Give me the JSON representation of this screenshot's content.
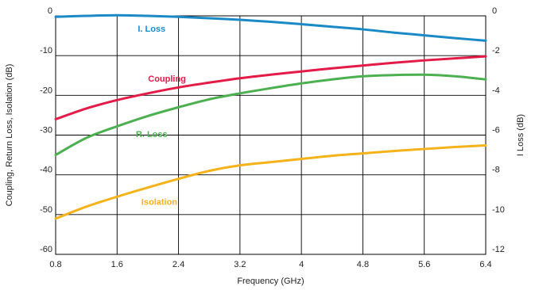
{
  "chart_data": {
    "type": "line",
    "xlabel": "Frequency (GHz)",
    "ylabel": "Coupling, Return Loss, Isolation (dB)",
    "y2label": "I Loss (dB)",
    "xlim": [
      0.8,
      6.4
    ],
    "ylim": [
      -60,
      0
    ],
    "y2lim": [
      -12,
      0
    ],
    "grid": true,
    "x_ticks": [
      "0.8",
      "1.6",
      "2.4",
      "3.2",
      "4",
      "4.8",
      "5.6",
      "6.4"
    ],
    "y_ticks": [
      "0",
      "-10",
      "-20",
      "-30",
      "-40",
      "-50",
      "-60"
    ],
    "y2_ticks": [
      "0",
      "-2",
      "-4",
      "-6",
      "-8",
      "-10",
      "-12"
    ],
    "series": [
      {
        "name": "I. Loss",
        "axis": "right",
        "color": "#1a8ac6",
        "x": [
          0.8,
          1.2,
          1.6,
          2.0,
          2.4,
          2.8,
          3.2,
          3.6,
          4.0,
          4.4,
          4.8,
          5.2,
          5.6,
          6.0,
          6.4
        ],
        "y": [
          -0.05,
          0.0,
          0.03,
          0.0,
          -0.05,
          -0.12,
          -0.2,
          -0.3,
          -0.42,
          -0.55,
          -0.68,
          -0.84,
          -0.98,
          -1.12,
          -1.25
        ]
      },
      {
        "name": "Coupling",
        "axis": "left",
        "color": "#e31b48",
        "x": [
          0.8,
          1.2,
          1.6,
          2.0,
          2.4,
          2.8,
          3.2,
          3.6,
          4.0,
          4.4,
          4.8,
          5.2,
          5.6,
          6.0,
          6.4
        ],
        "y": [
          -26.0,
          -23.3,
          -21.2,
          -19.5,
          -18.0,
          -16.8,
          -15.7,
          -14.8,
          -14.0,
          -13.2,
          -12.5,
          -11.8,
          -11.2,
          -10.7,
          -10.2
        ]
      },
      {
        "name": "R. Loss",
        "axis": "left",
        "color": "#4caf50",
        "x": [
          0.8,
          1.2,
          1.6,
          2.0,
          2.4,
          2.8,
          3.2,
          3.6,
          4.0,
          4.4,
          4.8,
          5.2,
          5.6,
          6.0,
          6.4
        ],
        "y": [
          -35.0,
          -30.7,
          -27.8,
          -25.2,
          -23.0,
          -21.0,
          -19.5,
          -18.2,
          -17.0,
          -16.0,
          -15.2,
          -14.9,
          -14.8,
          -15.2,
          -16.0
        ]
      },
      {
        "name": "Isolation",
        "axis": "left",
        "color": "#f4b21b",
        "x": [
          0.8,
          1.2,
          1.6,
          2.0,
          2.4,
          2.8,
          3.2,
          3.6,
          4.0,
          4.4,
          4.8,
          5.2,
          5.6,
          6.0,
          6.4
        ],
        "y": [
          -51.0,
          -48.0,
          -45.5,
          -43.2,
          -41.0,
          -39.0,
          -37.6,
          -36.8,
          -36.0,
          -35.2,
          -34.6,
          -34.0,
          -33.5,
          -33.0,
          -32.6
        ]
      }
    ],
    "labels": [
      {
        "text": "I. Loss",
        "series": "I. Loss",
        "x": 2.05,
        "y": -0.8,
        "axis": "right"
      },
      {
        "text": "Coupling",
        "series": "Coupling",
        "x": 2.25,
        "y": -16.5,
        "axis": "left"
      },
      {
        "text": "R. Loss",
        "series": "R. Loss",
        "x": 2.05,
        "y": -30.5,
        "axis": "left"
      },
      {
        "text": "Isolation",
        "series": "Isolation",
        "x": 2.15,
        "y": -47.5,
        "axis": "left"
      }
    ]
  }
}
